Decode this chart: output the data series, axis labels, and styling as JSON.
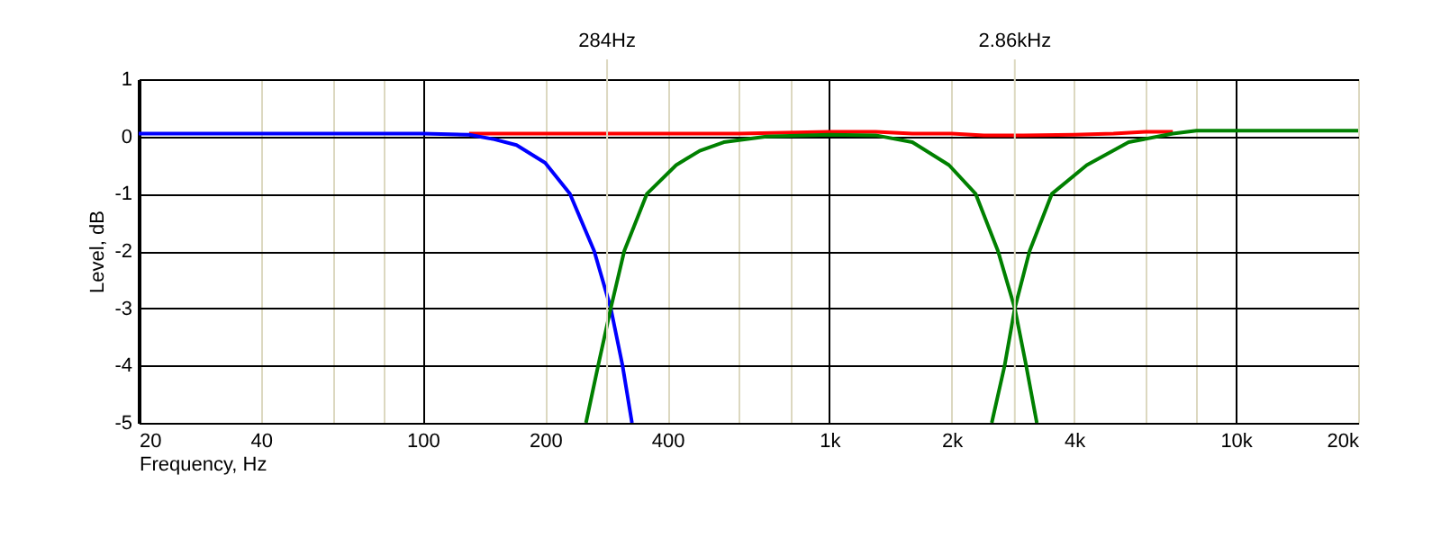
{
  "chart_data": {
    "type": "line",
    "xlabel": "Frequency, Hz",
    "ylabel": "Level, dB",
    "log": "x",
    "grid": true,
    "legend": false,
    "marker": "none",
    "line_style": "solid",
    "xlim": [
      20,
      20000
    ],
    "ylim": [
      -5,
      1
    ],
    "xticks": [
      20,
      40,
      {
        "value": 60,
        "label": null
      },
      {
        "value": 80,
        "label": null
      },
      100,
      200,
      400,
      {
        "value": 600,
        "label": null
      },
      {
        "value": 800,
        "label": null
      },
      {
        "value": 1000,
        "label": "1k"
      },
      {
        "value": 2000,
        "label": "2k"
      },
      {
        "value": 4000,
        "label": "4k"
      },
      {
        "value": 6000,
        "label": null
      },
      {
        "value": 8000,
        "label": null
      },
      {
        "value": 10000,
        "label": "10k"
      },
      {
        "value": 20000,
        "label": "20k"
      }
    ],
    "yticks": [
      -5,
      -4,
      -3,
      -2,
      -1,
      0,
      1
    ],
    "ref_lines": [
      {
        "axis": "x",
        "value": 284,
        "label": "284Hz",
        "color": "#dcd8c0"
      },
      {
        "axis": "x",
        "value": 2860,
        "label": "2.86kHz",
        "color": "#dcd8c0"
      }
    ],
    "series": [
      {
        "color": "#ff0000",
        "x": [
          130,
          300,
          600,
          1000,
          1300,
          1600,
          2000,
          2400,
          3000,
          4000,
          5000,
          6000,
          7000
        ],
        "values": [
          0.05,
          0.05,
          0.05,
          0.08,
          0.08,
          0.05,
          0.05,
          0.02,
          0.02,
          0.03,
          0.05,
          0.08,
          0.08
        ]
      },
      {
        "color": "#0000ff",
        "x": [
          20,
          50,
          100,
          130,
          150,
          170,
          200,
          230,
          264,
          290,
          310,
          327
        ],
        "values": [
          0.05,
          0.05,
          0.05,
          0.03,
          -0.05,
          -0.15,
          -0.46,
          -1,
          -2,
          -3,
          -4,
          -5
        ]
      },
      {
        "color": "#008000",
        "x": [
          252,
          270,
          290,
          313,
          356,
          420,
          480,
          550,
          700,
          1000,
          1300,
          1600,
          1970,
          2290,
          2600,
          2860,
          3050,
          3240
        ],
        "values": [
          -5,
          -4,
          -3,
          -2,
          -1,
          -0.5,
          -0.25,
          -0.1,
          0.0,
          0.03,
          0.02,
          -0.1,
          -0.5,
          -1,
          -2,
          -3,
          -4,
          -5
        ]
      },
      {
        "color": "#008000",
        "x": [
          2510,
          2700,
          2860,
          3110,
          3530,
          4300,
          5450,
          7000,
          8000,
          10000,
          20000
        ],
        "values": [
          -5,
          -4,
          -3,
          -2,
          -1,
          -0.5,
          -0.1,
          0.05,
          0.1,
          0.1,
          0.1
        ]
      }
    ]
  }
}
